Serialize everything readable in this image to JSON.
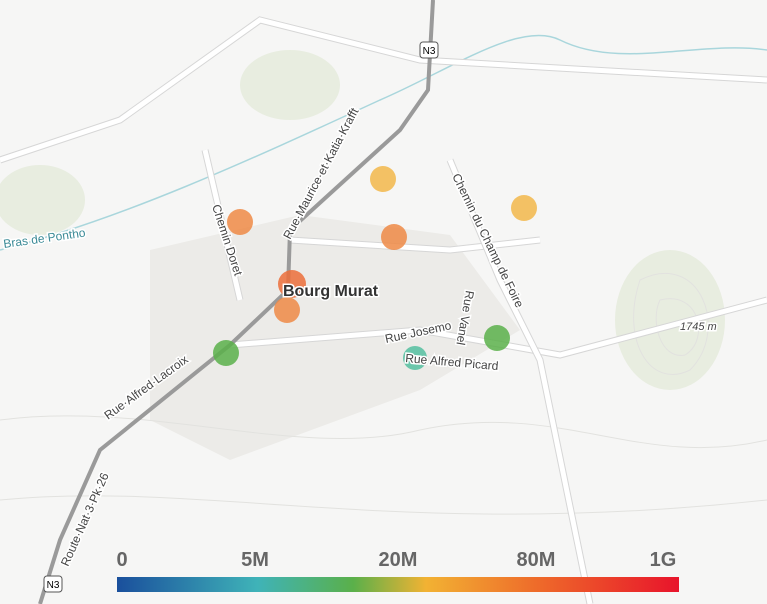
{
  "map": {
    "place": "Bourg Murat",
    "peak": "1745 m",
    "river": "Bras de Pontho",
    "shields": [
      "N3",
      "N3"
    ],
    "roads": {
      "krafft": "Rue·Maurice·et·Katia·Krafft",
      "doret": "Chemin Doret",
      "champ": "Chemin du Champ de Foire",
      "josemont": "Rue Josemo",
      "vanel": "Rue Vanel",
      "picard": "Rue Alfred Picard",
      "lacroix": "Rue·Alfred·Lacroix",
      "route": "Route·Nat·3·Pk·26"
    }
  },
  "legend": {
    "ticks": [
      "0",
      "5M",
      "20M",
      "80M",
      "1G"
    ]
  }
}
